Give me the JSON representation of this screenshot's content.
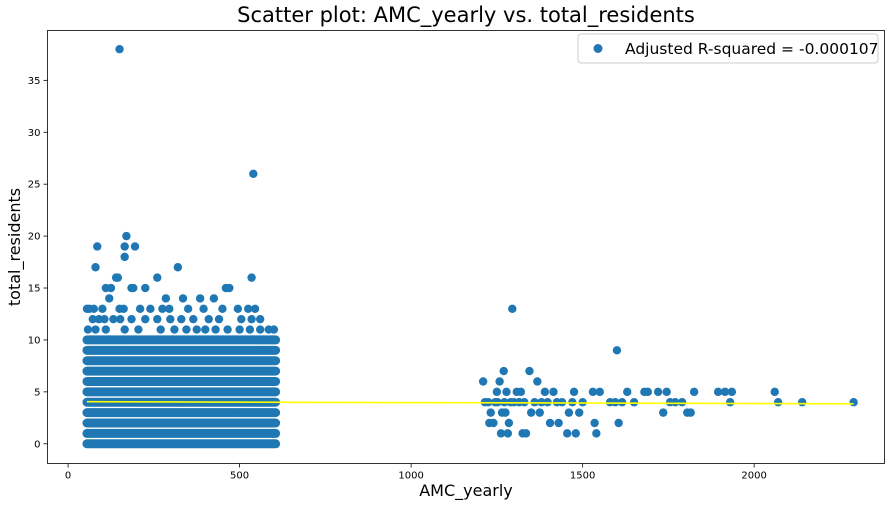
{
  "chart_data": {
    "type": "scatter",
    "title": "Scatter plot: AMC_yearly vs. total_residents",
    "xlabel": "AMC_yearly",
    "ylabel": "total_residents",
    "xlim": [
      -60,
      2380
    ],
    "ylim": [
      -1.9,
      39.8
    ],
    "xticks": [
      0,
      500,
      1000,
      1500,
      2000
    ],
    "yticks": [
      0,
      5,
      10,
      15,
      20,
      25,
      30,
      35
    ],
    "grid": false,
    "legend": {
      "position": "top-right",
      "label": "Adjusted R-squared = -0.000107"
    },
    "colors": {
      "points": "#1f77b4",
      "fit_line": "#ffff00"
    },
    "dense_band": {
      "x_range": [
        55,
        605
      ],
      "y_values": [
        0,
        1,
        2,
        3,
        4,
        5,
        6,
        7,
        8,
        9,
        10
      ]
    },
    "series": [
      {
        "points": [
          [
            150,
            38
          ],
          [
            540,
            26
          ],
          [
            535,
            16
          ],
          [
            545,
            13
          ],
          [
            170,
            20
          ],
          [
            85,
            19
          ],
          [
            165,
            19
          ],
          [
            195,
            19
          ],
          [
            165,
            18
          ],
          [
            80,
            17
          ],
          [
            320,
            17
          ],
          [
            140,
            16
          ],
          [
            145,
            16
          ],
          [
            260,
            16
          ],
          [
            110,
            15
          ],
          [
            125,
            15
          ],
          [
            185,
            15
          ],
          [
            190,
            15
          ],
          [
            225,
            15
          ],
          [
            460,
            15
          ],
          [
            470,
            15
          ],
          [
            120,
            14
          ],
          [
            285,
            14
          ],
          [
            335,
            14
          ],
          [
            385,
            14
          ],
          [
            425,
            14
          ],
          [
            55,
            13
          ],
          [
            62,
            13
          ],
          [
            75,
            13
          ],
          [
            100,
            13
          ],
          [
            150,
            13
          ],
          [
            162,
            13
          ],
          [
            210,
            13
          ],
          [
            240,
            13
          ],
          [
            275,
            13
          ],
          [
            295,
            13
          ],
          [
            350,
            13
          ],
          [
            395,
            13
          ],
          [
            450,
            13
          ],
          [
            495,
            13
          ],
          [
            525,
            13
          ],
          [
            72,
            12
          ],
          [
            90,
            12
          ],
          [
            106,
            12
          ],
          [
            132,
            12
          ],
          [
            152,
            12
          ],
          [
            185,
            12
          ],
          [
            225,
            12
          ],
          [
            260,
            12
          ],
          [
            298,
            12
          ],
          [
            330,
            12
          ],
          [
            365,
            12
          ],
          [
            410,
            12
          ],
          [
            440,
            12
          ],
          [
            505,
            12
          ],
          [
            535,
            12
          ],
          [
            560,
            12
          ],
          [
            58,
            11
          ],
          [
            80,
            11
          ],
          [
            110,
            11
          ],
          [
            165,
            11
          ],
          [
            205,
            11
          ],
          [
            270,
            11
          ],
          [
            310,
            11
          ],
          [
            345,
            11
          ],
          [
            375,
            11
          ],
          [
            400,
            11
          ],
          [
            430,
            11
          ],
          [
            465,
            11
          ],
          [
            500,
            11
          ],
          [
            530,
            11
          ],
          [
            560,
            11
          ],
          [
            585,
            11
          ],
          [
            600,
            11
          ],
          [
            470,
            3
          ],
          [
            472,
            6
          ],
          [
            498,
            2
          ],
          [
            505,
            4
          ],
          [
            510,
            8
          ],
          [
            560,
            1
          ],
          [
            562,
            9
          ],
          [
            575,
            0
          ],
          [
            590,
            1
          ],
          [
            598,
            9
          ],
          [
            600,
            7
          ],
          [
            440,
            0
          ],
          [
            480,
            0
          ],
          [
            530,
            0
          ],
          [
            570,
            10
          ],
          [
            585,
            10
          ],
          [
            1210,
            6
          ],
          [
            1215,
            4
          ],
          [
            1225,
            4
          ],
          [
            1228,
            2
          ],
          [
            1232,
            3
          ],
          [
            1240,
            2
          ],
          [
            1245,
            4
          ],
          [
            1250,
            5
          ],
          [
            1252,
            4
          ],
          [
            1258,
            6
          ],
          [
            1262,
            1
          ],
          [
            1265,
            3
          ],
          [
            1270,
            7
          ],
          [
            1272,
            4
          ],
          [
            1275,
            3
          ],
          [
            1278,
            5
          ],
          [
            1282,
            1
          ],
          [
            1285,
            2
          ],
          [
            1290,
            4
          ],
          [
            1295,
            13
          ],
          [
            1300,
            4
          ],
          [
            1308,
            5
          ],
          [
            1315,
            4
          ],
          [
            1320,
            5
          ],
          [
            1325,
            1
          ],
          [
            1330,
            4
          ],
          [
            1335,
            1
          ],
          [
            1345,
            7
          ],
          [
            1350,
            3
          ],
          [
            1360,
            4
          ],
          [
            1368,
            6
          ],
          [
            1375,
            3
          ],
          [
            1380,
            4
          ],
          [
            1390,
            5
          ],
          [
            1398,
            4
          ],
          [
            1405,
            2
          ],
          [
            1415,
            5
          ],
          [
            1425,
            4
          ],
          [
            1430,
            2
          ],
          [
            1440,
            4
          ],
          [
            1455,
            1
          ],
          [
            1460,
            3
          ],
          [
            1470,
            4
          ],
          [
            1475,
            5
          ],
          [
            1480,
            1
          ],
          [
            1490,
            3
          ],
          [
            1500,
            4
          ],
          [
            1530,
            5
          ],
          [
            1535,
            2
          ],
          [
            1540,
            1
          ],
          [
            1550,
            5
          ],
          [
            1580,
            4
          ],
          [
            1595,
            4
          ],
          [
            1600,
            9
          ],
          [
            1605,
            2
          ],
          [
            1615,
            4
          ],
          [
            1630,
            5
          ],
          [
            1650,
            4
          ],
          [
            1680,
            5
          ],
          [
            1690,
            5
          ],
          [
            1720,
            5
          ],
          [
            1735,
            3
          ],
          [
            1745,
            5
          ],
          [
            1755,
            4
          ],
          [
            1770,
            4
          ],
          [
            1790,
            4
          ],
          [
            1805,
            3
          ],
          [
            1815,
            3
          ],
          [
            1825,
            5
          ],
          [
            1895,
            5
          ],
          [
            1915,
            5
          ],
          [
            1930,
            4
          ],
          [
            1935,
            5
          ],
          [
            2060,
            5
          ],
          [
            2070,
            4
          ],
          [
            2140,
            4
          ],
          [
            2290,
            4
          ]
        ]
      }
    ],
    "fit_line": {
      "x": [
        55,
        2290
      ],
      "y": [
        4.05,
        3.85
      ]
    }
  }
}
